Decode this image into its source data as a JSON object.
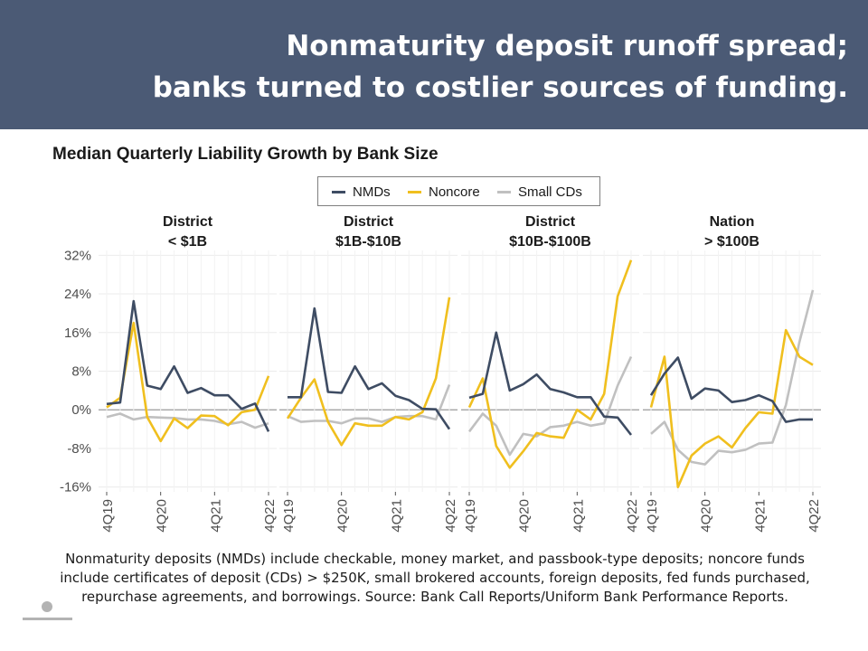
{
  "header": {
    "title_line1": "Nonmaturity deposit runoff spread;",
    "title_line2": "banks turned to costlier sources of funding."
  },
  "chart_data": {
    "type": "line",
    "title": "Median Quarterly Liability Growth by Bank Size",
    "legend": [
      "NMDs",
      "Noncore",
      "Small CDs"
    ],
    "legend_position": "top",
    "colors": {
      "NMDs": "#3e4c63",
      "Noncore": "#f0bf1e",
      "Small CDs": "#c0c0c0"
    },
    "y_ticks": [
      "32%",
      "24%",
      "16%",
      "8%",
      "0%",
      "-8%",
      "-16%"
    ],
    "y_tick_values": [
      32,
      24,
      16,
      8,
      0,
      -8,
      -16
    ],
    "ylim": [
      -17,
      33
    ],
    "x_tick_labels": [
      "4Q19",
      "4Q20",
      "4Q21",
      "4Q22"
    ],
    "x": [
      "4Q19",
      "1Q20",
      "2Q20",
      "3Q20",
      "4Q20",
      "1Q21",
      "2Q21",
      "3Q21",
      "4Q21",
      "1Q22",
      "2Q22",
      "3Q22",
      "4Q22"
    ],
    "grid": true,
    "panels": [
      {
        "title_line1": "District",
        "title_line2": "< $1B",
        "series": [
          {
            "name": "NMDs",
            "values": [
              1.2,
              1.5,
              22.5,
              5.0,
              4.3,
              9.0,
              3.5,
              4.5,
              3.0,
              3.0,
              0.2,
              1.3,
              -4.5
            ]
          },
          {
            "name": "Noncore",
            "values": [
              0.5,
              2.5,
              18.0,
              -1.5,
              -6.5,
              -1.8,
              -3.8,
              -1.2,
              -1.3,
              -3.2,
              -0.5,
              0.0,
              7.0
            ]
          },
          {
            "name": "Small CDs",
            "values": [
              -1.5,
              -0.8,
              -2.0,
              -1.5,
              -1.6,
              -1.7,
              -2.0,
              -2.0,
              -2.3,
              -3.0,
              -2.5,
              -3.7,
              -2.8
            ]
          }
        ]
      },
      {
        "title_line1": "District",
        "title_line2": "$1B-$10B",
        "series": [
          {
            "name": "NMDs",
            "values": [
              2.6,
              2.6,
              21.0,
              3.7,
              3.5,
              9.0,
              4.3,
              5.5,
              2.9,
              2.0,
              0.2,
              0.1,
              -4.0
            ]
          },
          {
            "name": "Noncore",
            "values": [
              -1.8,
              2.5,
              6.3,
              -2.5,
              -7.3,
              -2.8,
              -3.3,
              -3.3,
              -1.5,
              -2.0,
              -0.5,
              6.5,
              23.3
            ]
          },
          {
            "name": "Small CDs",
            "values": [
              -1.3,
              -2.5,
              -2.3,
              -2.3,
              -2.8,
              -1.8,
              -1.8,
              -2.5,
              -1.5,
              -1.3,
              -1.3,
              -2.0,
              5.2
            ]
          }
        ]
      },
      {
        "title_line1": "District",
        "title_line2": "$10B-$100B",
        "series": [
          {
            "name": "NMDs",
            "values": [
              2.5,
              3.3,
              16.0,
              4.0,
              5.3,
              7.3,
              4.3,
              3.6,
              2.6,
              2.6,
              -1.4,
              -1.6,
              -5.2
            ]
          },
          {
            "name": "Noncore",
            "values": [
              0.5,
              6.5,
              -7.5,
              -12.0,
              -8.6,
              -4.8,
              -5.5,
              -5.8,
              0.0,
              -2.0,
              3.3,
              23.5,
              31.0
            ]
          },
          {
            "name": "Small CDs",
            "values": [
              -4.5,
              -0.8,
              -3.3,
              -9.3,
              -5.0,
              -5.5,
              -3.6,
              -3.3,
              -2.5,
              -3.3,
              -2.8,
              5.0,
              11.0
            ]
          }
        ]
      },
      {
        "title_line1": "Nation",
        "title_line2": "> $100B",
        "series": [
          {
            "name": "NMDs",
            "values": [
              3.0,
              7.5,
              10.8,
              2.3,
              4.4,
              4.0,
              1.6,
              2.0,
              3.0,
              1.8,
              -2.5,
              -2.0,
              -2.0
            ]
          },
          {
            "name": "Noncore",
            "values": [
              0.5,
              11.0,
              -16.0,
              -9.5,
              -7.0,
              -5.5,
              -7.8,
              -3.8,
              -0.5,
              -0.8,
              16.5,
              11.0,
              9.3
            ]
          },
          {
            "name": "Small CDs",
            "values": [
              -5.0,
              -2.5,
              -8.3,
              -10.8,
              -11.3,
              -8.5,
              -8.8,
              -8.3,
              -7.0,
              -6.8,
              1.0,
              14.0,
              24.8
            ]
          }
        ]
      }
    ]
  },
  "footnote": {
    "line1": "Nonmaturity deposits (NMDs) include checkable, money market, and passbook-type deposits; noncore funds",
    "line2": "include certificates of deposit (CDs) > $250K, small brokered accounts, foreign deposits, fed funds purchased,",
    "line3": "repurchase agreements, and borrowings. Source: Bank Call Reports/Uniform Bank Performance Reports."
  }
}
